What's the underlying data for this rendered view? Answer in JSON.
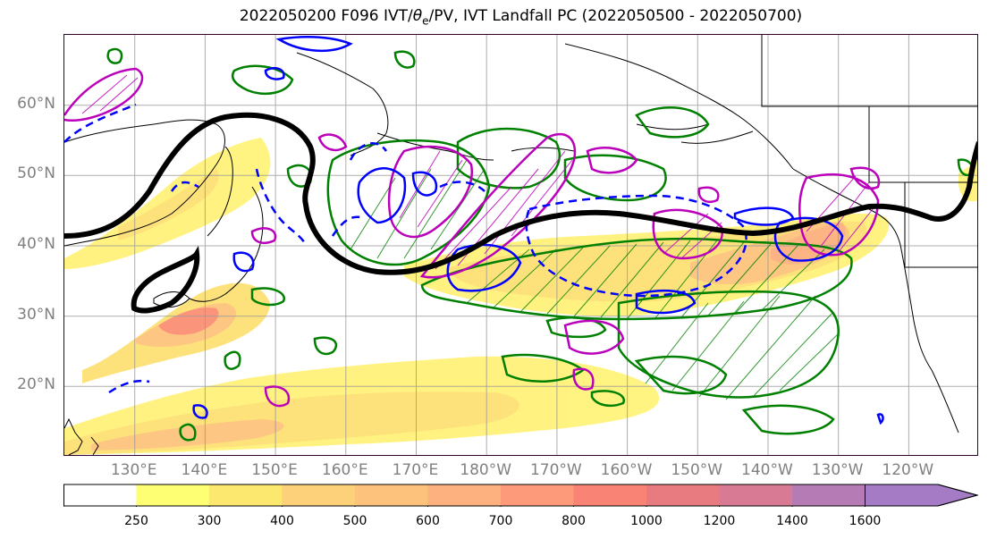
{
  "title": {
    "prefix": "2022050200 F096 IVT/",
    "theta": "θ",
    "theta_sub": "e",
    "suffix": "/PV, IVT Landfall PC (2022050500 - 2022050700)"
  },
  "map": {
    "lat_labels": [
      {
        "text": "60°N",
        "lat": 60
      },
      {
        "text": "50°N",
        "lat": 50
      },
      {
        "text": "40°N",
        "lat": 40
      },
      {
        "text": "30°N",
        "lat": 30
      },
      {
        "text": "20°N",
        "lat": 20
      }
    ],
    "lon_labels": [
      {
        "text": "130°E",
        "lon": 130
      },
      {
        "text": "140°E",
        "lon": 140
      },
      {
        "text": "150°E",
        "lon": 150
      },
      {
        "text": "160°E",
        "lon": 160
      },
      {
        "text": "170°E",
        "lon": 170
      },
      {
        "text": "180°W",
        "lon": 180
      },
      {
        "text": "170°W",
        "lon": 190
      },
      {
        "text": "160°W",
        "lon": 200
      },
      {
        "text": "150°W",
        "lon": 210
      },
      {
        "text": "140°W",
        "lon": 220
      },
      {
        "text": "130°W",
        "lon": 230
      },
      {
        "text": "120°W",
        "lon": 240
      }
    ],
    "extent": {
      "lon_min": 120,
      "lon_max": 250,
      "lat_min": 10,
      "lat_max": 70
    },
    "contour_colors": {
      "pc_positive": "#008000",
      "theta_pv": "#0000ff",
      "pv": "#bb00bb",
      "ivt_landfall": "#000000"
    }
  },
  "colorbar": {
    "levels": [
      "250",
      "300",
      "400",
      "500",
      "600",
      "700",
      "800",
      "1000",
      "1200",
      "1400",
      "1600"
    ],
    "colors": [
      "#ffffff",
      "#ffff73",
      "#fde86f",
      "#fdd17a",
      "#fdc37c",
      "#fdb17e",
      "#fd9a7a",
      "#f98374",
      "#e77b80",
      "#d87a94",
      "#b47bb4",
      "#a57bc6"
    ]
  }
}
